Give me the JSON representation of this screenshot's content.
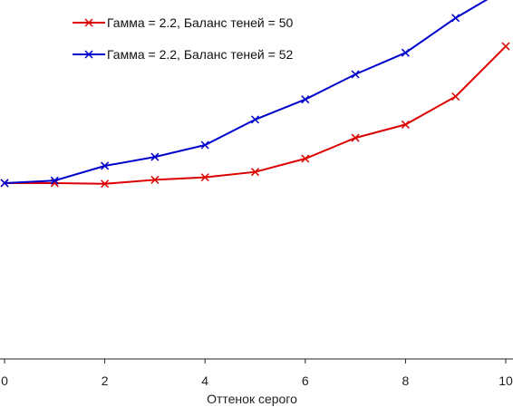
{
  "chart_data": {
    "type": "line",
    "title": "",
    "xlabel": "Оттенок серого",
    "ylabel": "",
    "xlim": [
      0,
      10
    ],
    "ylim": [
      0,
      10
    ],
    "x_ticks": [
      "0",
      "2",
      "4",
      "6",
      "8",
      "10"
    ],
    "grid": false,
    "legend_position": "top-left",
    "x": [
      0,
      1,
      2,
      3,
      4,
      5,
      6,
      7,
      8,
      9,
      10
    ],
    "series": [
      {
        "name": "Гамма = 2.2, Баланс теней = 50",
        "color": "#dd0000",
        "marker": "x",
        "values": [
          4.9,
          4.9,
          4.88,
          4.99,
          5.06,
          5.21,
          5.58,
          6.16,
          6.53,
          7.31,
          8.71
        ]
      },
      {
        "name": "Гамма = 2.2, Баланс теней = 52",
        "color": "#0000cc",
        "marker": "x",
        "values": [
          4.9,
          4.97,
          5.38,
          5.63,
          5.96,
          6.67,
          7.23,
          7.93,
          8.53,
          9.5,
          10.32
        ]
      }
    ]
  }
}
